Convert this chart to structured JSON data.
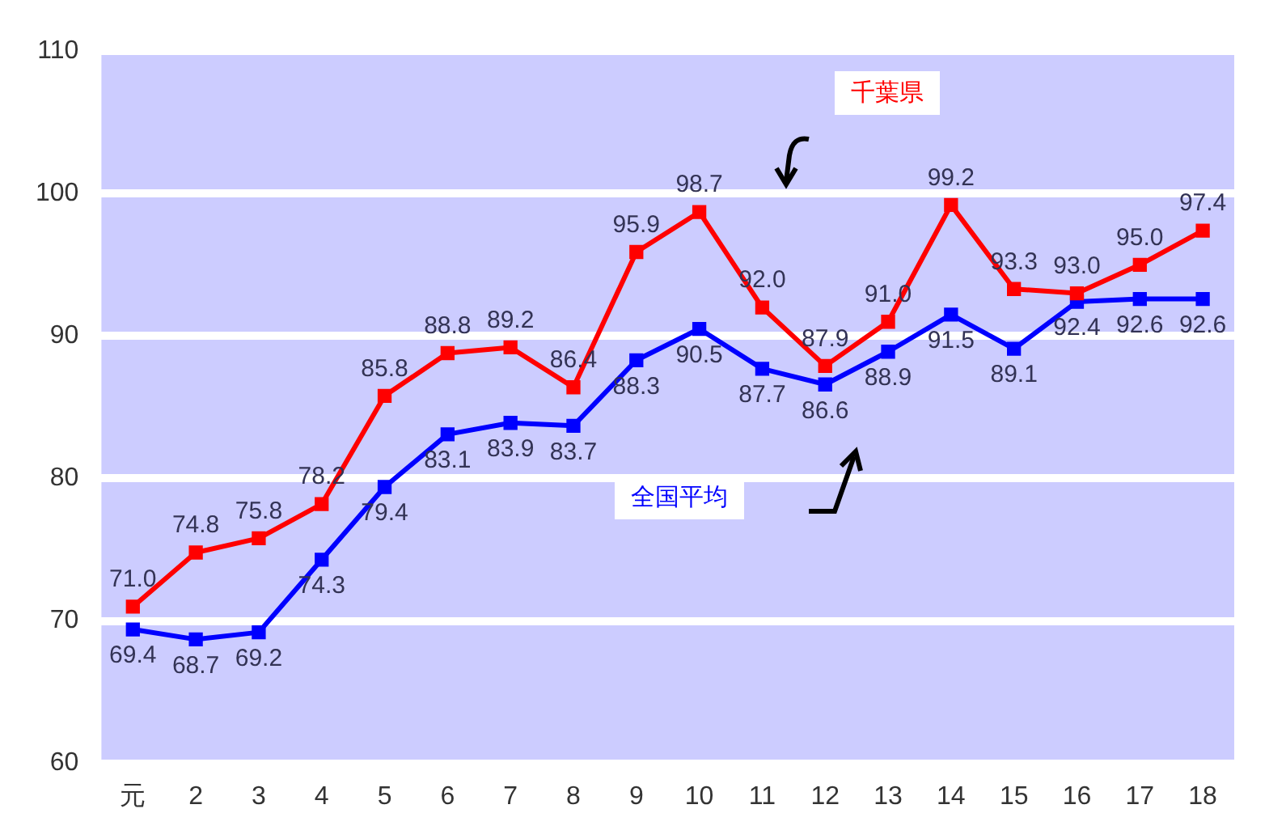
{
  "chart_data": {
    "type": "line",
    "categories": [
      "元",
      "2",
      "3",
      "4",
      "5",
      "6",
      "7",
      "8",
      "9",
      "10",
      "11",
      "12",
      "13",
      "14",
      "15",
      "16",
      "17",
      "18"
    ],
    "series": [
      {
        "name": "千葉県",
        "color": "#ff0000",
        "values": [
          71.0,
          74.8,
          75.8,
          78.2,
          85.8,
          88.8,
          89.2,
          86.4,
          95.9,
          98.7,
          92.0,
          87.9,
          91.0,
          99.2,
          93.3,
          93.0,
          95.0,
          97.4
        ],
        "value_labels": [
          "71.0",
          "74.8",
          "75.8",
          "78.2",
          "85.8",
          "88.8",
          "89.2",
          "86.4",
          "95.9",
          "98.7",
          "92.0",
          "87.9",
          "91.0",
          "99.2",
          "93.3",
          "93.0",
          "95.0",
          "97.4"
        ]
      },
      {
        "name": "全国平均",
        "color": "#0000ff",
        "values": [
          69.4,
          68.7,
          69.2,
          74.3,
          79.4,
          83.1,
          83.9,
          83.7,
          88.3,
          90.5,
          87.7,
          86.6,
          88.9,
          91.5,
          89.1,
          92.4,
          92.6,
          92.6
        ],
        "value_labels": [
          "69.4",
          "68.7",
          "69.2",
          "74.3",
          "79.4",
          "83.1",
          "83.9",
          "83.7",
          "88.3",
          "90.5",
          "87.7",
          "86.6",
          "88.9",
          "91.5",
          "89.1",
          "92.4",
          "92.6",
          "92.6"
        ]
      }
    ],
    "ylim": [
      60,
      110
    ],
    "yticks": [
      60,
      70,
      80,
      90,
      100,
      110
    ],
    "grid": "y",
    "legend": false,
    "marker": "square",
    "line_style": "solid"
  }
}
